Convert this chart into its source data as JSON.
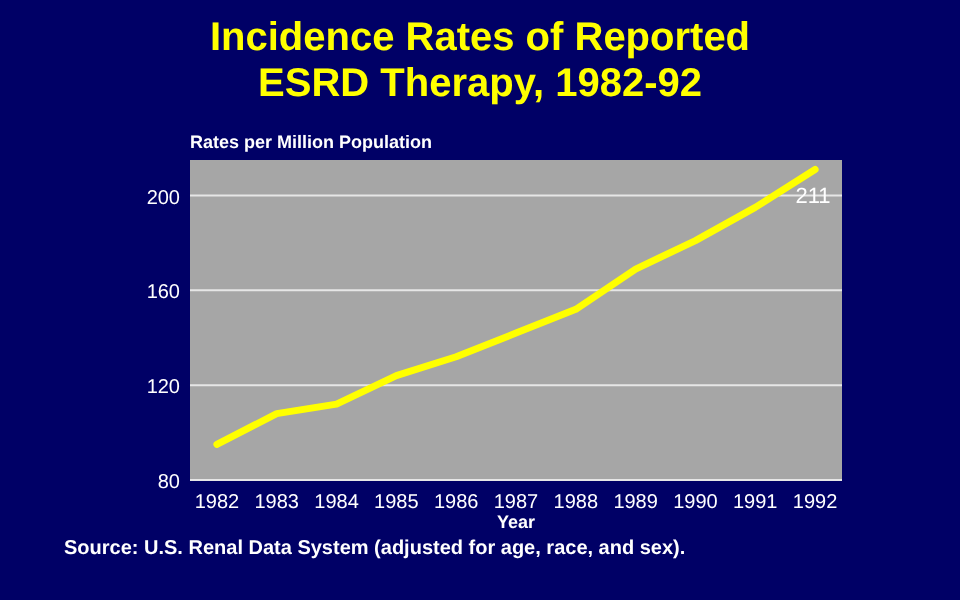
{
  "chart_data": {
    "type": "line",
    "title": "Incidence Rates of Reported ESRD Therapy, 1982-92",
    "ylabel": "Rates per Million Population",
    "xlabel": "Year",
    "categories": [
      "1982",
      "1983",
      "1984",
      "1985",
      "1986",
      "1987",
      "1988",
      "1989",
      "1990",
      "1991",
      "1992"
    ],
    "series": [
      {
        "color": "#ffff00",
        "values": [
          95,
          108,
          112,
          124,
          132,
          142,
          152,
          169,
          181,
          195,
          211
        ],
        "value_labels": [
          null,
          null,
          null,
          null,
          null,
          null,
          null,
          null,
          null,
          null,
          "211"
        ]
      }
    ],
    "ylim": [
      80,
      215
    ],
    "yticks": [
      80,
      120,
      160,
      200
    ],
    "grid": "y",
    "marker": "none",
    "line_style": "solid",
    "annotations": [
      "Source: U.S. Renal Data System (adjusted for age, race, and sex)."
    ]
  }
}
